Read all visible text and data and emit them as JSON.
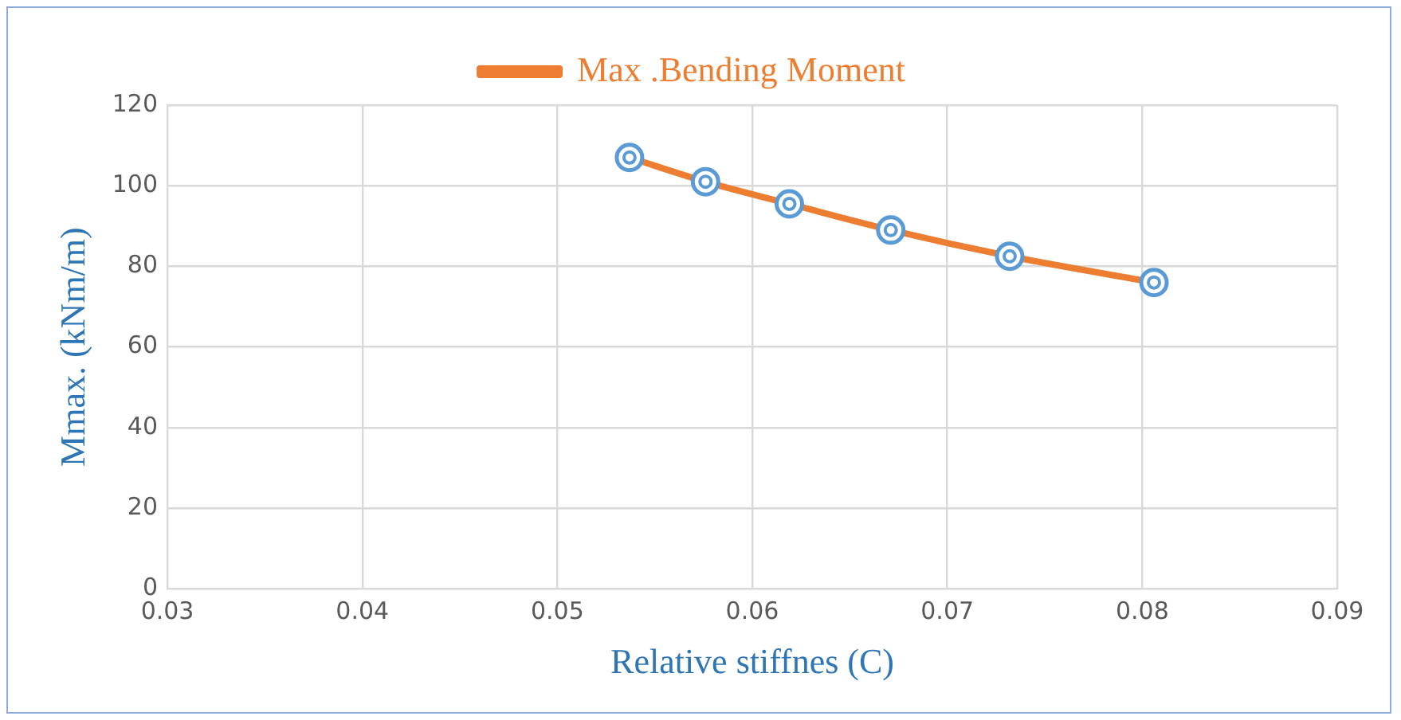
{
  "chart_data": {
    "type": "line",
    "xlabel": "Relative stiffnes (C)",
    "ylabel": "Mmax. (kNm/m)",
    "xlim": [
      0.03,
      0.09
    ],
    "xticks": [
      0.03,
      0.04,
      0.05,
      0.06,
      0.07,
      0.08,
      0.09
    ],
    "ylim": [
      0,
      120
    ],
    "yticks": [
      0,
      20,
      40,
      60,
      80,
      100,
      120
    ],
    "series": [
      {
        "name": "Max .Bending Moment",
        "color": "#ed7d31",
        "x": [
          0.0537,
          0.0576,
          0.0619,
          0.0671,
          0.0732,
          0.0806
        ],
        "values": [
          107,
          101,
          95.5,
          89,
          82.5,
          76
        ]
      }
    ],
    "marker": "circle",
    "grid": true,
    "legend": "top"
  }
}
